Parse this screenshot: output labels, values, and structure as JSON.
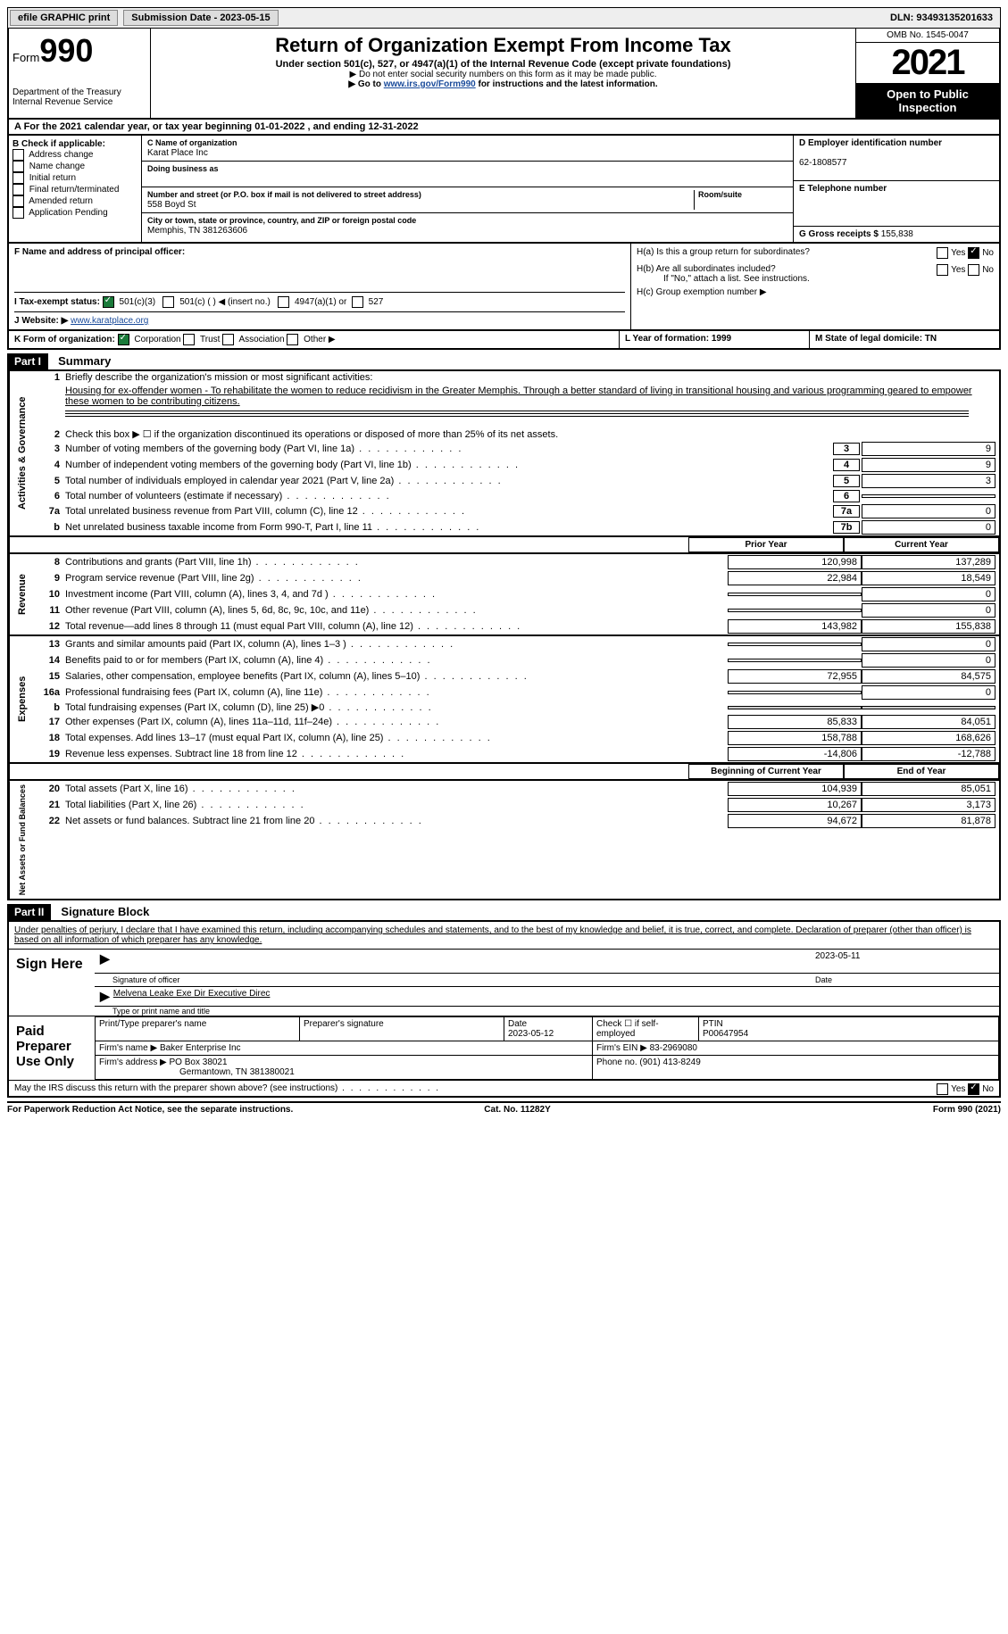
{
  "topbar": {
    "efile": "efile GRAPHIC print",
    "sub_label": "Submission Date - 2023-05-15",
    "dln": "DLN: 93493135201633"
  },
  "header": {
    "form_word": "Form",
    "form_num": "990",
    "dept": "Department of the Treasury Internal Revenue Service",
    "title": "Return of Organization Exempt From Income Tax",
    "sub1": "Under section 501(c), 527, or 4947(a)(1) of the Internal Revenue Code (except private foundations)",
    "pub1": "▶ Do not enter social security numbers on this form as it may be made public.",
    "pub2_pre": "▶ Go to ",
    "pub2_link": "www.irs.gov/Form990",
    "pub2_post": " for instructions and the latest information.",
    "omb": "OMB No. 1545-0047",
    "year": "2021",
    "inspect": "Open to Public Inspection"
  },
  "row_a": "A For the 2021 calendar year, or tax year beginning 01-01-2022   , and ending 12-31-2022",
  "col_b": {
    "hdr": "B Check if applicable:",
    "items": [
      "Address change",
      "Name change",
      "Initial return",
      "Final return/terminated",
      "Amended return",
      "Application Pending"
    ]
  },
  "col_c": {
    "name_lbl": "C Name of organization",
    "name": "Karat Place Inc",
    "dba_lbl": "Doing business as",
    "addr_lbl": "Number and street (or P.O. box if mail is not delivered to street address)",
    "room_lbl": "Room/suite",
    "addr": "558 Boyd St",
    "city_lbl": "City or town, state or province, country, and ZIP or foreign postal code",
    "city": "Memphis, TN  381263606"
  },
  "col_d": {
    "ein_lbl": "D Employer identification number",
    "ein": "62-1808577",
    "tel_lbl": "E Telephone number",
    "gross_lbl": "G Gross receipts $ ",
    "gross": "155,838"
  },
  "fh": {
    "f_lbl": "F Name and address of principal officer:",
    "i_lbl": "I   Tax-exempt status:",
    "i_opts": [
      "501(c)(3)",
      "501(c) (  ) ◀ (insert no.)",
      "4947(a)(1) or",
      "527"
    ],
    "j_lbl": "J  Website: ▶",
    "j_val": "www.karatplace.org",
    "ha": "H(a)  Is this a group return for subordinates?",
    "hb": "H(b)  Are all subordinates included?",
    "hb_note": "If \"No,\" attach a list. See instructions.",
    "hc": "H(c)  Group exemption number ▶",
    "yes": "Yes",
    "no": "No"
  },
  "row_k": {
    "k": "K Form of organization:",
    "opts": [
      "Corporation",
      "Trust",
      "Association",
      "Other ▶"
    ],
    "l": "L Year of formation: 1999",
    "m": "M State of legal domicile: TN"
  },
  "part1": {
    "hdr": "Part I",
    "title": "Summary",
    "q1_lbl": "Briefly describe the organization's mission or most significant activities:",
    "q1_txt": "Housing for ex-offender women - To rehabilitate the women to reduce recidivism in the Greater Memphis. Through a better standard of living in transitional housing and various programming geared to empower these women to be contributing citizens.",
    "q2": "Check this box ▶ ☐ if the organization discontinued its operations or disposed of more than 25% of its net assets.",
    "lines_gov": [
      {
        "n": "3",
        "t": "Number of voting members of the governing body (Part VI, line 1a)",
        "box": "3",
        "v": "9"
      },
      {
        "n": "4",
        "t": "Number of independent voting members of the governing body (Part VI, line 1b)",
        "box": "4",
        "v": "9"
      },
      {
        "n": "5",
        "t": "Total number of individuals employed in calendar year 2021 (Part V, line 2a)",
        "box": "5",
        "v": "3"
      },
      {
        "n": "6",
        "t": "Total number of volunteers (estimate if necessary)",
        "box": "6",
        "v": ""
      },
      {
        "n": "7a",
        "t": "Total unrelated business revenue from Part VIII, column (C), line 12",
        "box": "7a",
        "v": "0"
      },
      {
        "n": "b",
        "t": "Net unrelated business taxable income from Form 990-T, Part I, line 11",
        "box": "7b",
        "v": "0"
      }
    ],
    "col_hdr_prior": "Prior Year",
    "col_hdr_curr": "Current Year",
    "lines_rev": [
      {
        "n": "8",
        "t": "Contributions and grants (Part VIII, line 1h)",
        "p": "120,998",
        "c": "137,289"
      },
      {
        "n": "9",
        "t": "Program service revenue (Part VIII, line 2g)",
        "p": "22,984",
        "c": "18,549"
      },
      {
        "n": "10",
        "t": "Investment income (Part VIII, column (A), lines 3, 4, and 7d )",
        "p": "",
        "c": "0"
      },
      {
        "n": "11",
        "t": "Other revenue (Part VIII, column (A), lines 5, 6d, 8c, 9c, 10c, and 11e)",
        "p": "",
        "c": "0"
      },
      {
        "n": "12",
        "t": "Total revenue—add lines 8 through 11 (must equal Part VIII, column (A), line 12)",
        "p": "143,982",
        "c": "155,838"
      }
    ],
    "lines_exp": [
      {
        "n": "13",
        "t": "Grants and similar amounts paid (Part IX, column (A), lines 1–3 )",
        "p": "",
        "c": "0"
      },
      {
        "n": "14",
        "t": "Benefits paid to or for members (Part IX, column (A), line 4)",
        "p": "",
        "c": "0"
      },
      {
        "n": "15",
        "t": "Salaries, other compensation, employee benefits (Part IX, column (A), lines 5–10)",
        "p": "72,955",
        "c": "84,575"
      },
      {
        "n": "16a",
        "t": "Professional fundraising fees (Part IX, column (A), line 11e)",
        "p": "",
        "c": "0"
      },
      {
        "n": "b",
        "t": "Total fundraising expenses (Part IX, column (D), line 25) ▶0",
        "p": "shade",
        "c": "shade"
      },
      {
        "n": "17",
        "t": "Other expenses (Part IX, column (A), lines 11a–11d, 11f–24e)",
        "p": "85,833",
        "c": "84,051"
      },
      {
        "n": "18",
        "t": "Total expenses. Add lines 13–17 (must equal Part IX, column (A), line 25)",
        "p": "158,788",
        "c": "168,626"
      },
      {
        "n": "19",
        "t": "Revenue less expenses. Subtract line 18 from line 12",
        "p": "-14,806",
        "c": "-12,788"
      }
    ],
    "col_hdr_beg": "Beginning of Current Year",
    "col_hdr_end": "End of Year",
    "lines_net": [
      {
        "n": "20",
        "t": "Total assets (Part X, line 16)",
        "p": "104,939",
        "c": "85,051"
      },
      {
        "n": "21",
        "t": "Total liabilities (Part X, line 26)",
        "p": "10,267",
        "c": "3,173"
      },
      {
        "n": "22",
        "t": "Net assets or fund balances. Subtract line 21 from line 20",
        "p": "94,672",
        "c": "81,878"
      }
    ],
    "vlabels": {
      "gov": "Activities & Governance",
      "rev": "Revenue",
      "exp": "Expenses",
      "net": "Net Assets or Fund Balances"
    }
  },
  "part2": {
    "hdr": "Part II",
    "title": "Signature Block",
    "decl": "Under penalties of perjury, I declare that I have examined this return, including accompanying schedules and statements, and to the best of my knowledge and belief, it is true, correct, and complete. Declaration of preparer (other than officer) is based on all information of which preparer has any knowledge.",
    "sign_here": "Sign Here",
    "sig_date": "2023-05-11",
    "sig_of": "Signature of officer",
    "date_lbl": "Date",
    "officer": "Melvena Leake Exe Dir  Executive Direc",
    "type_name": "Type or print name and title",
    "paid": "Paid Preparer Use Only",
    "prep_name_lbl": "Print/Type preparer's name",
    "prep_sig_lbl": "Preparer's signature",
    "prep_date_lbl": "Date",
    "prep_date": "2023-05-12",
    "self_emp": "Check ☐ if self-employed",
    "ptin_lbl": "PTIN",
    "ptin": "P00647954",
    "firm_name_lbl": "Firm's name    ▶",
    "firm_name": "Baker Enterprise Inc",
    "firm_ein_lbl": "Firm's EIN ▶",
    "firm_ein": "83-2969080",
    "firm_addr_lbl": "Firm's address ▶",
    "firm_addr1": "PO Box 38021",
    "firm_addr2": "Germantown, TN  381380021",
    "phone_lbl": "Phone no.",
    "phone": "(901) 413-8249",
    "discuss": "May the IRS discuss this return with the preparer shown above? (see instructions)"
  },
  "footer": {
    "left": "For Paperwork Reduction Act Notice, see the separate instructions.",
    "mid": "Cat. No. 11282Y",
    "right": "Form 990 (2021)"
  }
}
